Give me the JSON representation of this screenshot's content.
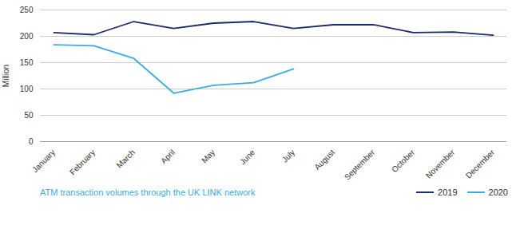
{
  "chart_data": {
    "type": "line",
    "caption": "ATM transaction volumes through the UK LINK network",
    "ylabel": "Million",
    "categories": [
      "January",
      "February",
      "March",
      "April",
      "May",
      "June",
      "July",
      "August",
      "September",
      "October",
      "November",
      "December"
    ],
    "series": [
      {
        "name": "2019",
        "color": "#1b2a6b",
        "values": [
          207,
          203,
          228,
          215,
          225,
          228,
          215,
          222,
          222,
          207,
          208,
          202
        ]
      },
      {
        "name": "2020",
        "color": "#3aace0",
        "values": [
          184,
          182,
          158,
          92,
          107,
          112,
          138,
          null,
          null,
          null,
          null,
          null
        ]
      }
    ],
    "ylim": [
      0,
      250
    ],
    "yticks": [
      0,
      50,
      100,
      150,
      200,
      250
    ],
    "grid": true,
    "legend": "bottom"
  }
}
